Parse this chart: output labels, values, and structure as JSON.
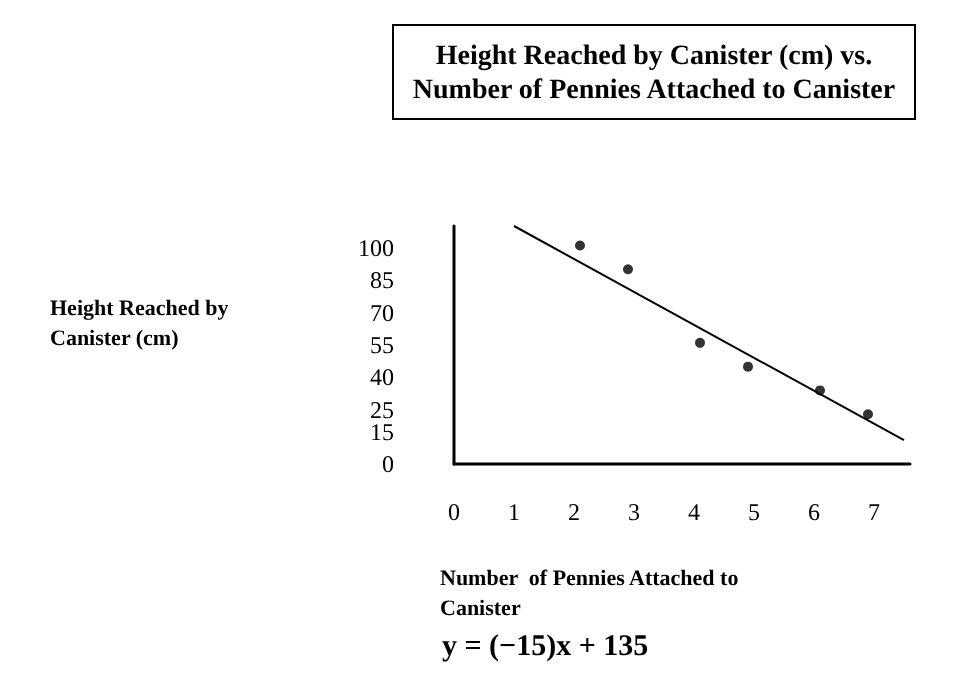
{
  "chart_data": {
    "type": "scatter",
    "title": "Height Reached by Canister (cm) vs.\nNumber of Pennies Attached to Canister",
    "xlabel": "Number  of Pennies Attached to\nCanister",
    "annotations": [
      "Height Reached by\nCanister (cm)",
      "y = (−15)x + 135"
    ],
    "series": [
      {
        "color": "#000000",
        "marker": "circle",
        "x": [
          2.1,
          2.9,
          4.1,
          4.9,
          6.1,
          6.9
        ],
        "values": [
          101,
          90,
          56,
          45,
          34,
          23
        ]
      },
      {
        "type": "line",
        "color": "#000000",
        "x": [
          1.0,
          7.5
        ],
        "values": [
          110,
          11
        ]
      }
    ],
    "xlim": [
      0,
      7.6
    ],
    "xticks": [
      0,
      1,
      2,
      3,
      4,
      5,
      6,
      7
    ],
    "ylim": [
      0,
      110
    ],
    "yticks": [
      0,
      15,
      25,
      40,
      55,
      70,
      85,
      100
    ],
    "grid": false
  }
}
